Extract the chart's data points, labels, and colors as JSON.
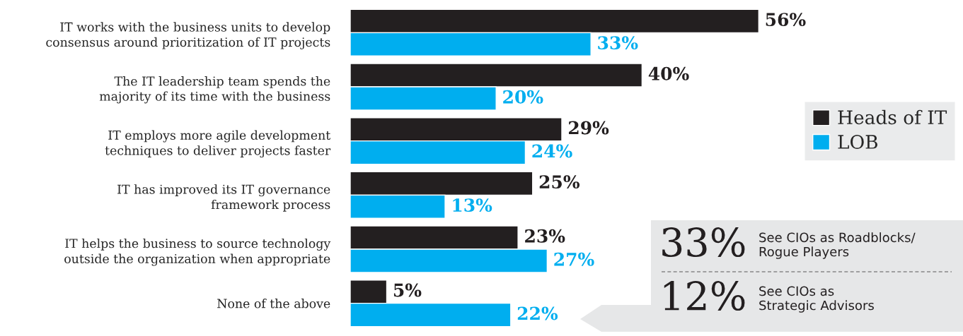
{
  "chart_data": {
    "type": "bar",
    "orientation": "horizontal",
    "categories": [
      "IT works with the business units to develop\nconsensus around prioritization of IT projects",
      "The IT leadership team spends the\nmajority of its time with the business",
      "IT employs more agile development\ntechniques to deliver projects faster",
      "IT has improved its IT governance\nframework process",
      "IT helps the business to source technology\noutside the organization when appropriate",
      "None of the above"
    ],
    "series": [
      {
        "name": "Heads of IT",
        "color": "#231f20",
        "values": [
          56,
          40,
          29,
          25,
          23,
          5
        ],
        "value_labels": [
          "56%",
          "40%",
          "29%",
          "25%",
          "23%",
          "5%"
        ]
      },
      {
        "name": "LOB",
        "color": "#00aeef",
        "values": [
          33,
          20,
          24,
          13,
          27,
          22
        ],
        "value_labels": [
          "33%",
          "20%",
          "24%",
          "13%",
          "27%",
          "22%"
        ]
      }
    ],
    "xlim": [
      0,
      84
    ],
    "grid": false,
    "legend": "right",
    "annotations": [
      "33%",
      "See CIOs as Roadblocks/\nRogue Players",
      "12%",
      "See CIOs as\nStrategic Advisors"
    ]
  }
}
